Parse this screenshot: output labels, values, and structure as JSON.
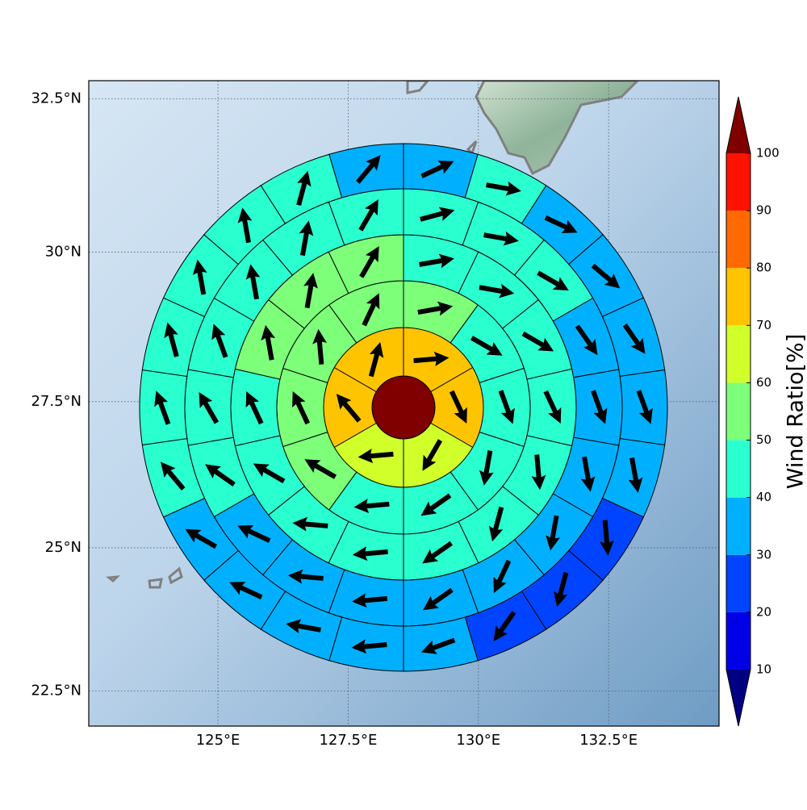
{
  "chart_data": {
    "type": "polar_sector_map",
    "xlim": [
      122.52,
      134.62
    ],
    "ylim": [
      21.88,
      32.79
    ],
    "xticks": [
      {
        "value": 125,
        "label": "125°E"
      },
      {
        "value": 127.5,
        "label": "127.5°E"
      },
      {
        "value": 130,
        "label": "130°E"
      },
      {
        "value": 132.5,
        "label": "132.5°E"
      }
    ],
    "yticks": [
      {
        "value": 22.5,
        "label": "22.5°N"
      },
      {
        "value": 25,
        "label": "25°N"
      },
      {
        "value": 27.5,
        "label": "27.5°N"
      },
      {
        "value": 30,
        "label": "30°N"
      },
      {
        "value": 32.5,
        "label": "32.5°N"
      }
    ],
    "grid": true,
    "center_value": 105,
    "rings": [
      {
        "values": [
          75,
          75,
          65,
          65,
          75,
          75
        ],
        "directions": [
          85,
          155,
          210,
          265,
          320,
          15
        ]
      },
      {
        "values": [
          55,
          45,
          45,
          45,
          45,
          45,
          55,
          55,
          55,
          55
        ],
        "directions": [
          80,
          120,
          160,
          190,
          235,
          265,
          300,
          335,
          355,
          25
        ]
      },
      {
        "values": [
          45,
          45,
          45,
          45,
          45,
          45,
          45,
          45,
          45,
          45,
          45,
          55,
          55,
          55
        ],
        "directions": [
          80,
          100,
          120,
          155,
          175,
          195,
          235,
          265,
          275,
          300,
          335,
          350,
          10,
          30
        ]
      },
      {
        "values": [
          45,
          45,
          45,
          35,
          35,
          35,
          35,
          35,
          35,
          35,
          35,
          35,
          45,
          45,
          45,
          45,
          45,
          45
        ],
        "directions": [
          75,
          100,
          120,
          145,
          160,
          170,
          190,
          205,
          235,
          265,
          275,
          295,
          305,
          330,
          340,
          350,
          10,
          30
        ]
      },
      {
        "values": [
          35,
          45,
          35,
          35,
          35,
          35,
          35,
          25,
          25,
          25,
          35,
          35,
          35,
          35,
          35,
          45,
          45,
          45,
          45,
          45,
          45,
          35
        ],
        "directions": [
          65,
          100,
          115,
          130,
          145,
          160,
          170,
          175,
          195,
          215,
          250,
          265,
          280,
          295,
          300,
          320,
          340,
          345,
          350,
          350,
          15,
          40
        ]
      }
    ],
    "colorbar": {
      "label": "Wind Ratio[%]",
      "ticks": [
        10,
        20,
        30,
        40,
        50,
        60,
        70,
        80,
        90,
        100
      ],
      "colors": [
        "#000080",
        "#0000e6",
        "#0044ff",
        "#00b0ff",
        "#2affd0",
        "#7dff7a",
        "#d0ff2a",
        "#ffc400",
        "#ff6a00",
        "#ff1300",
        "#800000"
      ],
      "extend": "both"
    }
  }
}
